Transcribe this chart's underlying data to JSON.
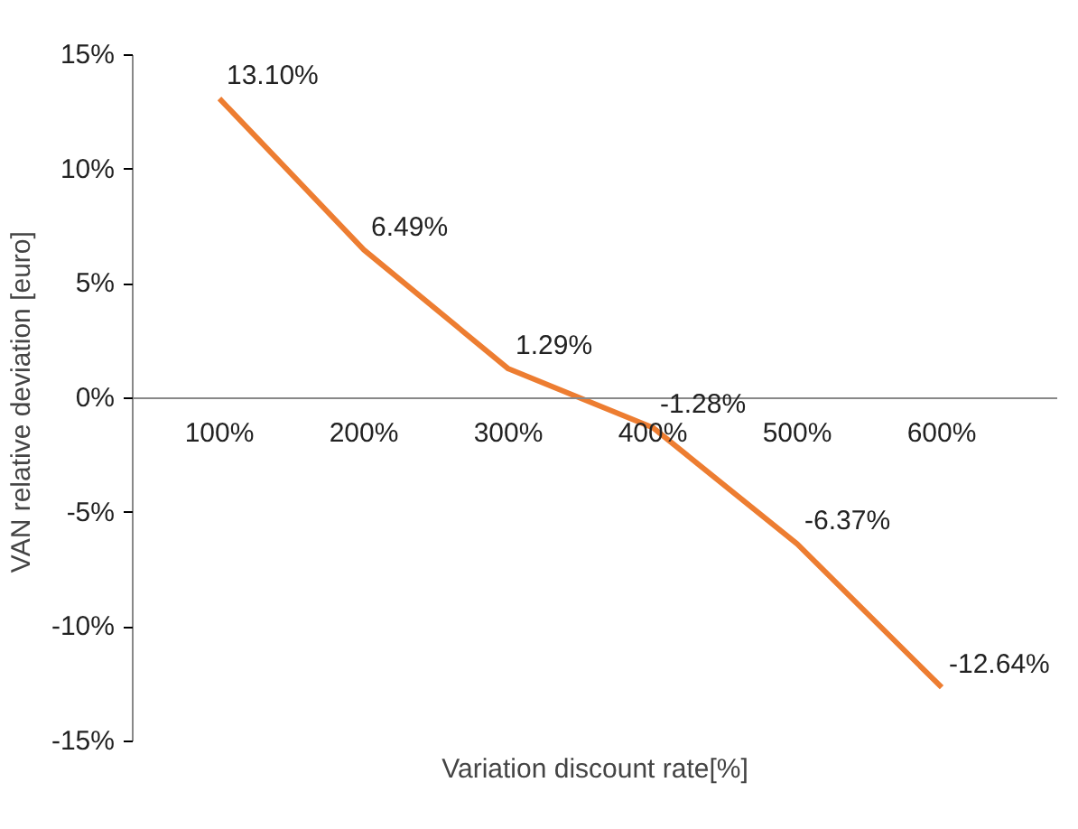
{
  "chart_data": {
    "type": "line",
    "xlabel": "Variation discount rate[%]",
    "ylabel": "VAN relative deviation  [euro]",
    "categories": [
      "100%",
      "200%",
      "300%",
      "400%",
      "500%",
      "600%"
    ],
    "series": [
      {
        "color": "#ed7d31",
        "values": [
          13.1,
          6.49,
          1.29,
          -1.28,
          -6.37,
          -12.64
        ],
        "value_labels": [
          "13.10%",
          "6.49%",
          "1.29%",
          "-1.28%",
          "-6.37%",
          "-12.64%"
        ]
      }
    ],
    "ylim": [
      -15,
      15
    ],
    "yticks": [
      {
        "value": -15,
        "label": "-15%"
      },
      {
        "value": -10,
        "label": "-10%"
      },
      {
        "value": -5,
        "label": "-5%"
      },
      {
        "value": 0,
        "label": "0%"
      },
      {
        "value": 5,
        "label": "5%"
      },
      {
        "value": 10,
        "label": "10%"
      },
      {
        "value": 15,
        "label": "15%"
      }
    ],
    "grid": false,
    "marker": "none",
    "line_style": "solid"
  }
}
